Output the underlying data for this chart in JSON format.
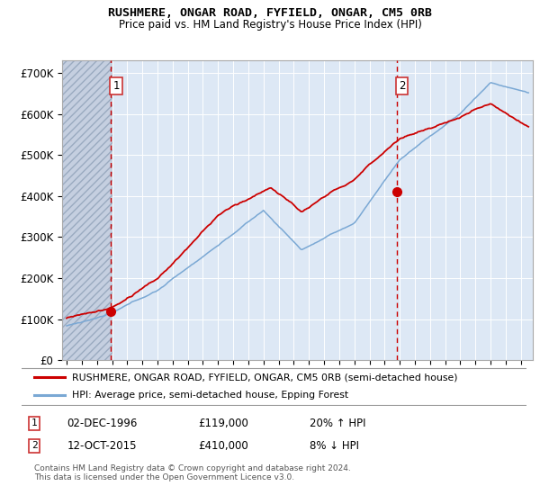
{
  "title": "RUSHMERE, ONGAR ROAD, FYFIELD, ONGAR, CM5 0RB",
  "subtitle": "Price paid vs. HM Land Registry's House Price Index (HPI)",
  "ylim": [
    0,
    730000
  ],
  "yticks": [
    0,
    100000,
    200000,
    300000,
    400000,
    500000,
    600000,
    700000
  ],
  "ytick_labels": [
    "£0",
    "£100K",
    "£200K",
    "£300K",
    "£400K",
    "£500K",
    "£600K",
    "£700K"
  ],
  "xlim_start": 1993.7,
  "xlim_end": 2024.8,
  "marker1_x": 1996.92,
  "marker1_y": 119000,
  "marker1_label": "1",
  "marker2_x": 2015.79,
  "marker2_y": 410000,
  "marker2_label": "2",
  "legend_line1": "RUSHMERE, ONGAR ROAD, FYFIELD, ONGAR, CM5 0RB (semi-detached house)",
  "legend_line2": "HPI: Average price, semi-detached house, Epping Forest",
  "note1_num": "1",
  "note1_date": "02-DEC-1996",
  "note1_price": "£119,000",
  "note1_hpi": "20% ↑ HPI",
  "note2_num": "2",
  "note2_date": "12-OCT-2015",
  "note2_price": "£410,000",
  "note2_hpi": "8% ↓ HPI",
  "copyright": "Contains HM Land Registry data © Crown copyright and database right 2024.\nThis data is licensed under the Open Government Licence v3.0.",
  "line_color_red": "#cc0000",
  "line_color_blue": "#7aa8d4",
  "background_main": "#dde8f5",
  "grid_color": "#ffffff",
  "dashed_line_color": "#cc0000",
  "hatch_end": 1997.0
}
